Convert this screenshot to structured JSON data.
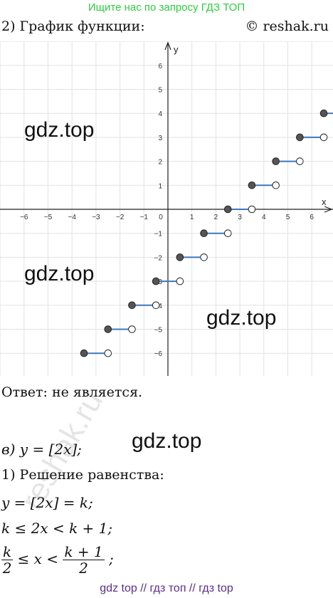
{
  "banner": "Ищите нас по запросу ГДЗ ТОП",
  "heading": "2) График функции:",
  "copyright": "© reshak.ru",
  "watermark": "gdz.top",
  "answer": "Ответ:  не является.",
  "part_v": "в) y = [2x];",
  "solution_heading": "1) Решение равенства:",
  "eq1": "y = [2x] = k;",
  "eq2": "k ≤ 2x < k + 1;",
  "frac_left_num": "k",
  "frac_left_den": "2",
  "frac_mid": "≤ x <",
  "frac_right_num": "k + 1",
  "frac_right_den": "2",
  "frac_end": ";",
  "footer": "gdz top  //  гдз топ  //  гдз top",
  "reshak_watermark": "reshak.ru",
  "chart_data": {
    "type": "scatter",
    "xlabel": "x",
    "ylabel": "y",
    "xlim": [
      -6.9,
      6.9
    ],
    "ylim": [
      -6.9,
      6.9
    ],
    "x_ticks": [
      -6,
      -5,
      -4,
      -3,
      -2,
      -1,
      0,
      1,
      2,
      3,
      4,
      5,
      6
    ],
    "y_ticks": [
      -6,
      -5,
      -4,
      -3,
      -2,
      -1,
      1,
      2,
      3,
      4,
      5,
      6
    ],
    "grid": true,
    "segments": [
      {
        "x_start": -3.5,
        "x_end": -2.5,
        "y": -6
      },
      {
        "x_start": -2.5,
        "x_end": -1.5,
        "y": -5
      },
      {
        "x_start": -1.5,
        "x_end": -0.5,
        "y": -4
      },
      {
        "x_start": -0.5,
        "x_end": 0.5,
        "y": -3
      },
      {
        "x_start": 0.5,
        "x_end": 1.5,
        "y": -2
      },
      {
        "x_start": 1.5,
        "x_end": 2.5,
        "y": -1
      },
      {
        "x_start": 2.5,
        "x_end": 3.5,
        "y": 0
      },
      {
        "x_start": 3.5,
        "x_end": 4.5,
        "y": 1
      },
      {
        "x_start": 4.5,
        "x_end": 5.5,
        "y": 2
      },
      {
        "x_start": 5.5,
        "x_end": 6.5,
        "y": 3
      },
      {
        "x_start": 6.5,
        "x_end": 7.5,
        "y": 4
      }
    ],
    "colors": {
      "segment": "#3a78c2",
      "closed_point": "#555555",
      "open_point": "#ffffff",
      "grid": "#e2e2e2",
      "axis": "#222222"
    }
  }
}
